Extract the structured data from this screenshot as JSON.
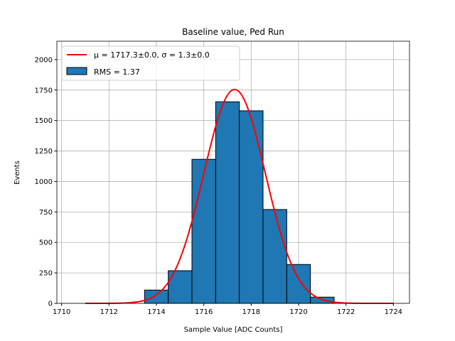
{
  "chart_data": {
    "type": "bar",
    "title": "Baseline value, Ped Run",
    "xlabel": "Sample Value [ADC Counts]",
    "ylabel": "Events",
    "xlim": [
      1709.8,
      1724.68
    ],
    "ylim": [
      0,
      2151
    ],
    "grid": true,
    "legend_position": "top-left",
    "bin_edges": [
      1713.5,
      1714.5,
      1715.5,
      1716.5,
      1717.5,
      1718.5,
      1719.5,
      1720.5,
      1721.5
    ],
    "values": [
      109,
      268,
      1182,
      1654,
      1580,
      770,
      319,
      51
    ],
    "bar_color": "#1f77b4",
    "fit": {
      "type": "gaussian",
      "amplitude": 1755,
      "mu": 1717.3,
      "sigma": 1.3,
      "x_range": [
        1711,
        1724
      ],
      "color": "#ff0000"
    },
    "legend": [
      "μ = 1717.3±0.0, σ = 1.3±0.0",
      "RMS = 1.37"
    ],
    "xticks": [
      1710,
      1712,
      1714,
      1716,
      1718,
      1720,
      1722,
      1724
    ],
    "yticks": [
      0,
      250,
      500,
      750,
      1000,
      1250,
      1500,
      1750,
      2000
    ]
  }
}
